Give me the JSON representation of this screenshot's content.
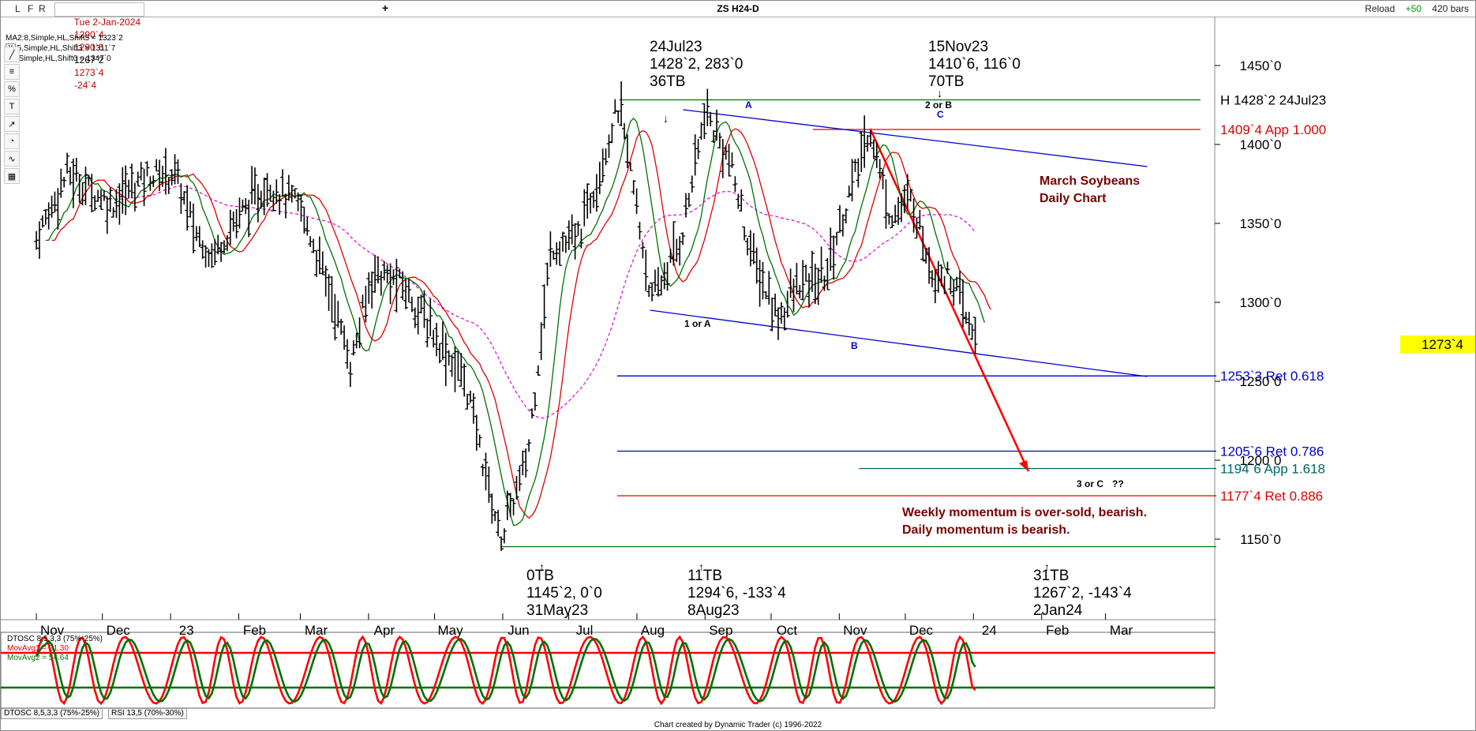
{
  "toolbar": {
    "l_label": "L",
    "f_label": "F",
    "r_label": "R",
    "quote": [
      "Tue 2-Jan-2024",
      "1290`4",
      "1290`6",
      "1267`2",
      "1273`4",
      "-24`4"
    ],
    "plus_label": "+",
    "reload_label": "Reload",
    "bars_delta": "+50",
    "bars_count": "420 bars"
  },
  "chart_title": "ZS H24-D",
  "ma_legend": {
    "close_label": "X",
    "ma1": "MA2:8,Simple,HL,Shift5 = 1323`2",
    "ma2": "5,Simple,HL,Shift3 = 1311`7",
    "ma3": ":40,Simple,HL,Shift0 = 1347`0"
  },
  "drawing_tools": [
    "line-tool",
    "fib-tool",
    "ratio-tool",
    "time-tool",
    "projection-tool",
    "cycle-tool",
    "pattern-tool",
    "settings-tool"
  ],
  "colors": {
    "ma1": "#e00000",
    "ma2": "#007000",
    "ma3": "#e000e0",
    "channel": "#0000cc",
    "current_price_bg": "#ffff00",
    "note_text": "#7a0000",
    "osc_red": "#ff0000",
    "osc_green": "#007000"
  },
  "price_axis": {
    "labels": [
      "1450`0",
      "1400`0",
      "1350`0",
      "1300`0",
      "1250`0",
      "1200`0",
      "1150`0"
    ],
    "values": [
      1450,
      1400,
      1350,
      1300,
      1250,
      1200,
      1150
    ],
    "current_price": "1273`4",
    "current_value": 1273.5
  },
  "time_axis": {
    "labels": [
      "Nov",
      "Dec",
      "23",
      "Feb",
      "Mar",
      "Apr",
      "May",
      "Jun",
      "Jul",
      "Aug",
      "Sep",
      "Oct",
      "Nov",
      "Dec",
      "24",
      "Feb",
      "Mar"
    ]
  },
  "levels": [
    {
      "label": "H 1428`2 24Jul23",
      "value": 1428.25,
      "color": "#007000",
      "text_color": "#000000"
    },
    {
      "label": "1409`4 App 1.000",
      "value": 1409.5,
      "color": "#e00000",
      "text_color": "#e00000"
    },
    {
      "label": "1253`3 Ret 0.618",
      "value": 1253.4,
      "color": "#0000cc",
      "text_color": "#0000cc"
    },
    {
      "label": "1205`6 Ret 0.786",
      "value": 1205.75,
      "color": "#0000cc",
      "text_color": "#0000cc"
    },
    {
      "label": "1194`6 App 1.618",
      "value": 1194.75,
      "color": "#006666",
      "text_color": "#006666"
    },
    {
      "label": "1177`4 Ret 0.886",
      "value": 1177.5,
      "color": "#e00000",
      "text_color": "#e00000"
    }
  ],
  "pivots": [
    {
      "date": "24Jul23",
      "price_text": "1428`2, 283`0",
      "bars": "36TB",
      "value": 1428.25
    },
    {
      "date": "15Nov23",
      "price_text": "1410`6, 116`0",
      "bars": "70TB",
      "value": 1410.75
    },
    {
      "bars": "0TB",
      "price_text": "1145`2, 0`0",
      "date": "31May23",
      "value": 1145.25
    },
    {
      "bars": "11TB",
      "price_text": "1294`6, -133`4",
      "date": "8Aug23",
      "value": 1294.75
    },
    {
      "bars": "31TB",
      "price_text": "1267`2, -143`4",
      "date": "2Jan24",
      "value": 1267.25
    }
  ],
  "wave_labels": [
    "A",
    "C",
    "2 or B",
    "1 or A",
    "B",
    "3 or C",
    "??"
  ],
  "notes": {
    "title_line1": "March Soybeans",
    "title_line2": "Daily Chart",
    "momentum_line1": "Weekly momentum is over-sold, bearish.",
    "momentum_line2": "Daily momentum is bearish."
  },
  "oscillator": {
    "name": "DTOSC 8,5,3,3 (75%-25%)",
    "ma1_label": "MovAvg1 = 21.30",
    "ma2_label": "MovAvg2 = 54.64",
    "upper": 75,
    "lower": 25,
    "last_fast": 21.3,
    "last_slow": 54.64
  },
  "tabs": [
    "DTOSC 8,5,3,3 (75%-25%)",
    "RSI 13,5 (70%-30%)"
  ],
  "credit": "Chart created by Dynamic Trader  (c) 1996-2022",
  "chart_data": {
    "type": "ohlc",
    "title": "ZS H24-D",
    "ylim": [
      1100,
      1470
    ],
    "x_ticks": [
      "Nov",
      "Dec",
      "23",
      "Feb",
      "Mar",
      "Apr",
      "May",
      "Jun",
      "Jul",
      "Aug",
      "Sep",
      "Oct",
      "Nov",
      "Dec",
      "24",
      "Feb",
      "Mar"
    ],
    "anchors": [
      {
        "date": "2022-11-01",
        "close": 1340
      },
      {
        "date": "2022-11-15",
        "close": 1382
      },
      {
        "date": "2022-12-05",
        "close": 1362
      },
      {
        "date": "2022-12-20",
        "close": 1380
      },
      {
        "date": "2023-01-03",
        "close": 1382
      },
      {
        "date": "2023-01-12",
        "close": 1345
      },
      {
        "date": "2023-01-20",
        "close": 1330
      },
      {
        "date": "2023-02-01",
        "close": 1355
      },
      {
        "date": "2023-02-15",
        "close": 1375
      },
      {
        "date": "2023-03-01",
        "close": 1360
      },
      {
        "date": "2023-03-15",
        "close": 1305
      },
      {
        "date": "2023-03-24",
        "close": 1260
      },
      {
        "date": "2023-04-03",
        "close": 1320
      },
      {
        "date": "2023-04-17",
        "close": 1310
      },
      {
        "date": "2023-05-01",
        "close": 1280
      },
      {
        "date": "2023-05-15",
        "close": 1250
      },
      {
        "date": "2023-05-31",
        "close": 1150
      },
      {
        "date": "2023-06-12",
        "close": 1200
      },
      {
        "date": "2023-06-23",
        "close": 1335
      },
      {
        "date": "2023-07-05",
        "close": 1340
      },
      {
        "date": "2023-07-24",
        "close": 1425
      },
      {
        "date": "2023-08-08",
        "close": 1300
      },
      {
        "date": "2023-08-21",
        "close": 1340
      },
      {
        "date": "2023-09-01",
        "close": 1420
      },
      {
        "date": "2023-09-12",
        "close": 1390
      },
      {
        "date": "2023-09-22",
        "close": 1330
      },
      {
        "date": "2023-10-04",
        "close": 1290
      },
      {
        "date": "2023-10-13",
        "close": 1310
      },
      {
        "date": "2023-10-25",
        "close": 1315
      },
      {
        "date": "2023-11-06",
        "close": 1370
      },
      {
        "date": "2023-11-15",
        "close": 1410
      },
      {
        "date": "2023-11-24",
        "close": 1355
      },
      {
        "date": "2023-12-04",
        "close": 1365
      },
      {
        "date": "2023-12-13",
        "close": 1320
      },
      {
        "date": "2023-12-22",
        "close": 1315
      },
      {
        "date": "2024-01-02",
        "close": 1273.5
      }
    ],
    "series": [
      {
        "name": "MA2:8,Simple,HL,Shift5",
        "last": 1323.25
      },
      {
        "name": "5,Simple,HL,Shift3",
        "last": 1311.875
      },
      {
        "name": ":40,Simple,HL,Shift0",
        "last": 1347
      }
    ],
    "trend_lines": [
      {
        "from": {
          "date": "2023-08-22",
          "value": 1422
        },
        "to": {
          "date": "2024-03-20",
          "value": 1386
        }
      },
      {
        "from": {
          "date": "2023-08-07",
          "value": 1295
        },
        "to": {
          "date": "2024-03-20",
          "value": 1253
        }
      },
      {
        "from": {
          "date": "2023-11-15",
          "value": 1410
        },
        "to": {
          "date": "2024-01-26",
          "value": 1193
        }
      }
    ]
  }
}
